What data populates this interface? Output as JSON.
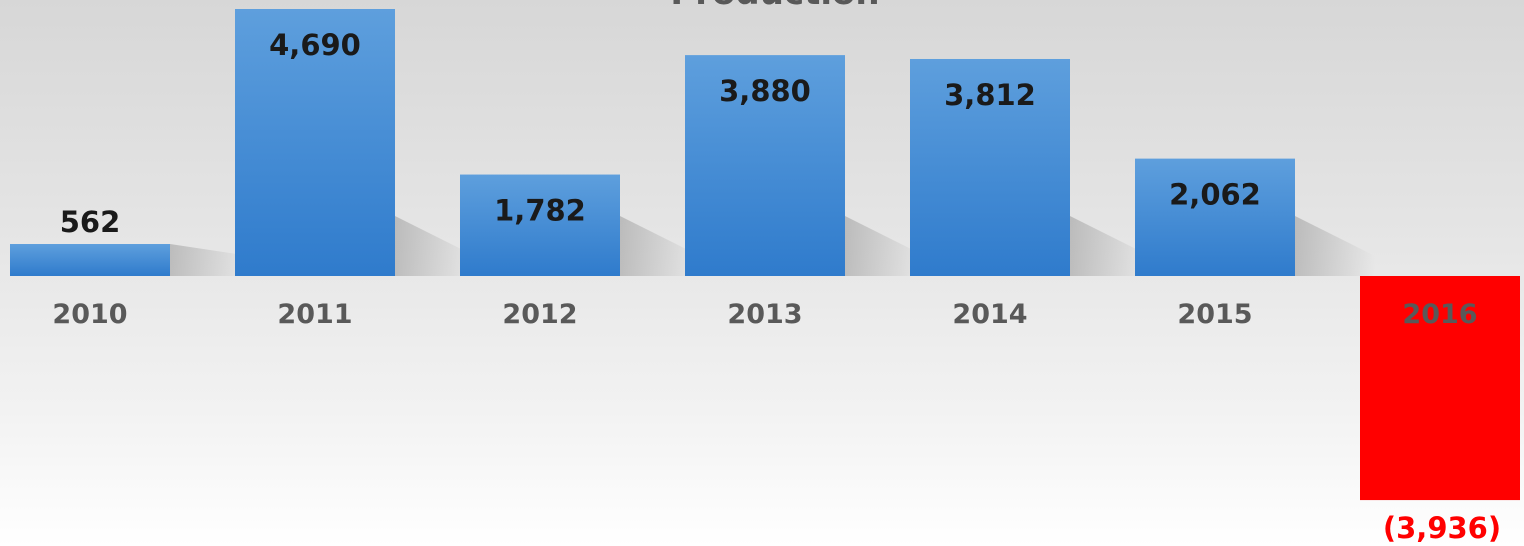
{
  "chart_data": {
    "type": "bar",
    "title": "Production",
    "xlabel": "",
    "ylabel": "",
    "categories": [
      "2010",
      "2011",
      "2012",
      "2013",
      "2014",
      "2015",
      "2016"
    ],
    "values": [
      562,
      4690,
      1782,
      3880,
      3812,
      2062,
      -3936
    ],
    "data_labels": [
      "562",
      "4,690",
      "1,782",
      "3,880",
      "3,812",
      "2,062",
      "(3,936)"
    ],
    "ylim": [
      -4500,
      4900
    ],
    "grid": false,
    "legend": "none",
    "colors": {
      "positive": "#3f8ad6",
      "positive_top": "#5e9fdd",
      "positive_bottom": "#2f7bcc",
      "negative": "#ff0000",
      "label": "#1a1a1a",
      "negative_label": "#ff0000",
      "tick": "#595959"
    }
  }
}
